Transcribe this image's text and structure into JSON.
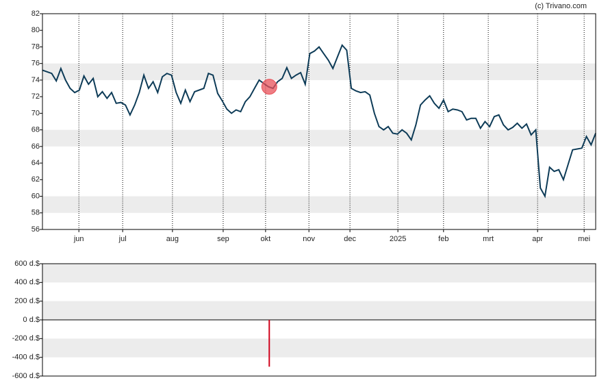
{
  "chart_data": [
    {
      "type": "line",
      "credit": "(c) Trivano.com",
      "color": "#0d3b57",
      "xlim": [
        0,
        120
      ],
      "values": [
        75.2,
        75.0,
        74.8,
        73.9,
        75.4,
        74.0,
        73.0,
        72.5,
        72.8,
        74.5,
        73.5,
        74.2,
        72.0,
        72.6,
        71.8,
        72.5,
        71.2,
        71.3,
        71.0,
        69.8,
        71.0,
        72.5,
        74.6,
        73.0,
        73.8,
        72.5,
        74.4,
        74.8,
        74.6,
        72.5,
        71.2,
        72.8,
        71.4,
        72.6,
        72.8,
        73.0,
        74.8,
        74.6,
        72.4,
        71.5,
        70.5,
        70.0,
        70.4,
        70.2,
        71.4,
        72.0,
        73.0,
        74.0,
        73.6,
        73.2,
        73.0,
        73.8,
        74.2,
        75.5,
        74.2,
        74.6,
        74.9,
        73.5,
        77.2,
        77.5,
        78.0,
        77.2,
        76.4,
        75.4,
        76.8,
        78.2,
        77.6,
        73.0,
        72.7,
        72.5,
        72.6,
        72.2,
        70.0,
        68.4,
        68.0,
        68.4,
        67.6,
        67.5,
        68.0,
        67.6,
        66.8,
        68.6,
        71.0,
        71.6,
        72.1,
        71.2,
        70.6,
        71.6,
        70.2,
        70.5,
        70.4,
        70.2,
        69.2,
        69.4,
        69.4,
        68.2,
        69.0,
        68.4,
        69.6,
        69.8,
        68.6,
        68.0,
        68.3,
        68.8,
        68.2,
        68.7,
        67.4,
        68.0,
        61.0,
        60.0,
        63.5,
        63.0,
        63.2,
        62.0,
        63.8,
        65.6,
        65.7,
        65.8,
        67.2,
        66.2,
        67.6
      ],
      "xticks": [
        {
          "value": 7.9,
          "label": "jun"
        },
        {
          "value": 17.4,
          "label": "jul"
        },
        {
          "value": 28.2,
          "label": "aug"
        },
        {
          "value": 39.2,
          "label": "sep"
        },
        {
          "value": 48.4,
          "label": "okt"
        },
        {
          "value": 57.8,
          "label": "nov"
        },
        {
          "value": 66.7,
          "label": "dec"
        },
        {
          "value": 77.1,
          "label": "2025"
        },
        {
          "value": 87,
          "label": "feb"
        },
        {
          "value": 96.7,
          "label": "mrt"
        },
        {
          "value": 107.4,
          "label": "apr"
        },
        {
          "value": 117.5,
          "label": "mei"
        }
      ],
      "ylim": [
        56,
        82
      ],
      "yticks": [
        56,
        58,
        60,
        62,
        64,
        66,
        68,
        70,
        72,
        74,
        76,
        78,
        80,
        82
      ],
      "marker": {
        "x": 49.2,
        "y": 73.2,
        "color": "#e8525a"
      }
    },
    {
      "type": "bar",
      "color": "#d0021b",
      "xlim": [
        0,
        120
      ],
      "x": [
        49.2
      ],
      "values": [
        -500
      ],
      "ylim": [
        -600,
        600
      ],
      "yticks": [
        {
          "value": -600,
          "label": "-600 d.$"
        },
        {
          "value": -400,
          "label": "-400 d.$"
        },
        {
          "value": -200,
          "label": "-200 d.$"
        },
        {
          "value": 0,
          "label": "0 d.$"
        },
        {
          "value": 200,
          "label": "200 d.$"
        },
        {
          "value": 400,
          "label": "400 d.$"
        },
        {
          "value": 600,
          "label": "600 d.$"
        }
      ]
    }
  ]
}
